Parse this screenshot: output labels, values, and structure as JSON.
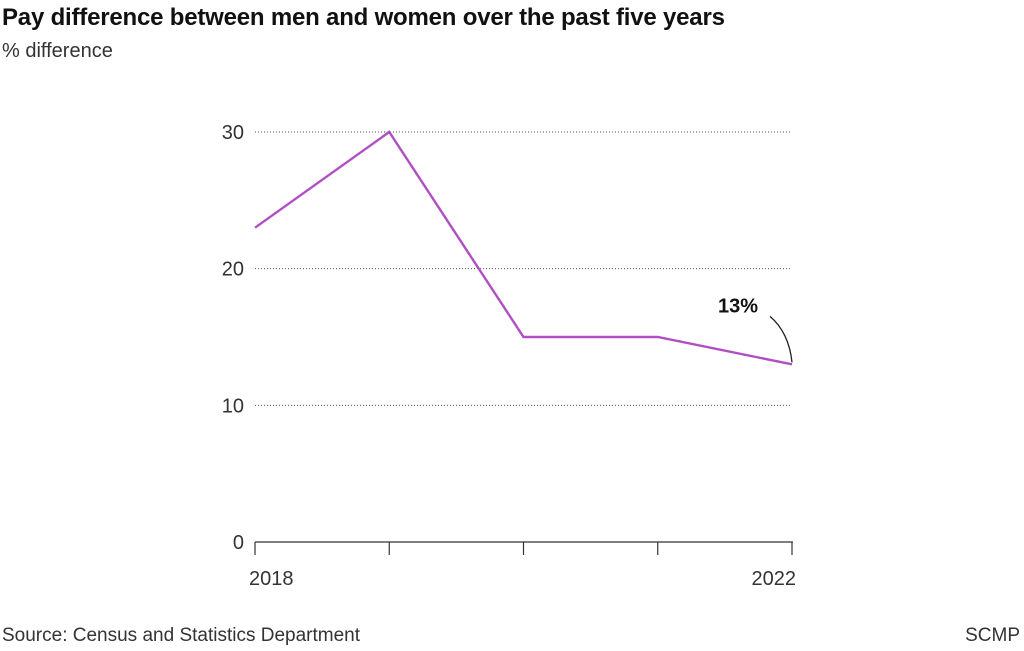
{
  "header": {
    "title": "Pay difference between men and women over the past five years",
    "subtitle": "% difference"
  },
  "footer": {
    "source": "Source: Census and Statistics Department",
    "brand": "SCMP"
  },
  "colors": {
    "line": "#b04fc4",
    "grid": "#555555",
    "axis": "#333333"
  },
  "chart_data": {
    "type": "line",
    "title": "Pay difference between men and women over the past five years",
    "ylabel": "% difference",
    "x": [
      2018,
      2019,
      2020,
      2021,
      2022
    ],
    "x_tick_labels": [
      "2018",
      "",
      "",
      "",
      "2022"
    ],
    "series": [
      {
        "values": [
          23,
          30,
          15,
          15,
          13
        ]
      }
    ],
    "ylim": [
      0,
      30
    ],
    "y_ticks": [
      0,
      10,
      20,
      30
    ],
    "y_tick_labels": [
      "0",
      "10",
      "20",
      "30"
    ],
    "grid": "horizontal dotted",
    "annotations": [
      {
        "text": "13%",
        "x": 2022,
        "y": 13
      }
    ]
  }
}
